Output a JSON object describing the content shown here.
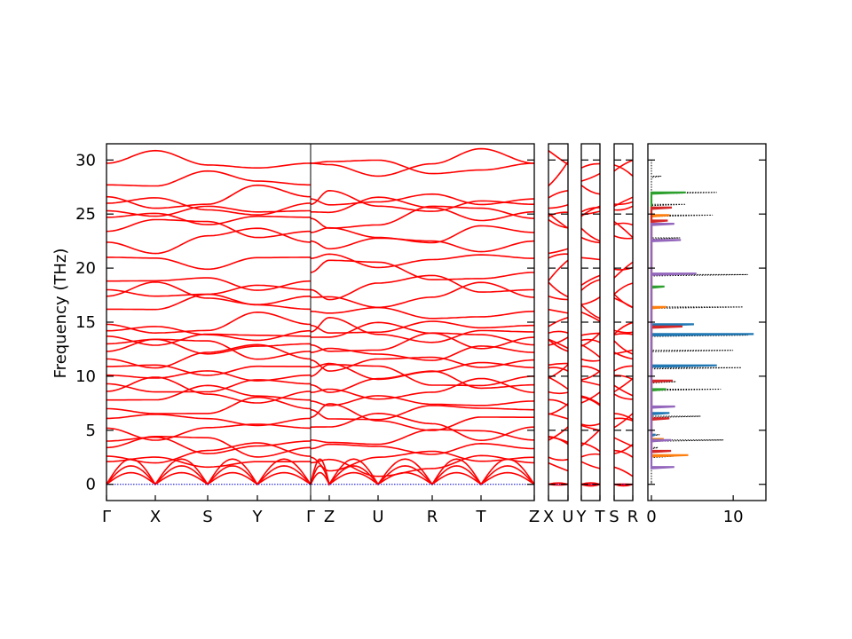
{
  "chart_data": {
    "type": "line",
    "ylabel": "Frequency (THz)",
    "ylim": [
      -1.5,
      31.5
    ],
    "yticks": [
      "0",
      "5",
      "10",
      "15",
      "20",
      "25",
      "30"
    ],
    "band_color": "#ff0000",
    "zero_line_color": "#0000cc",
    "panels": [
      {
        "segments": [
          {
            "labels": [
              "Γ",
              "X"
            ]
          },
          {
            "labels": [
              "X",
              "S"
            ]
          },
          {
            "labels": [
              "S",
              "Y"
            ]
          },
          {
            "labels": [
              "Y",
              "Γ"
            ]
          }
        ]
      },
      {
        "segments": [
          {
            "labels": [
              "Z",
              "U"
            ]
          },
          {
            "labels": [
              "U",
              "R"
            ]
          },
          {
            "labels": [
              "R",
              "T"
            ]
          },
          {
            "labels": [
              "T",
              "Z"
            ]
          }
        ]
      },
      {
        "segments": [
          {
            "labels": [
              "X",
              "U"
            ]
          }
        ]
      },
      {
        "segments": [
          {
            "labels": [
              "Y",
              "T"
            ]
          }
        ]
      },
      {
        "segments": [
          {
            "labels": [
              "S",
              "R"
            ]
          }
        ]
      }
    ],
    "band_frequencies": {
      "Gamma": [
        0,
        0,
        0,
        2.1,
        2.6,
        3.4,
        4.0,
        5.2,
        6.1,
        7.0,
        7.8,
        8.6,
        9.3,
        10.1,
        10.9,
        11.6,
        12.3,
        13.0,
        13.7,
        14.2,
        14.8,
        16.2,
        17.4,
        18.0,
        18.8,
        21.0,
        22.4,
        23.4,
        24.7,
        25.3,
        26.0,
        26.6,
        27.7,
        29.7
      ],
      "Z": [
        0,
        0,
        0,
        2.0,
        2.5,
        3.3,
        4.1,
        5.3,
        6.2,
        6.9,
        7.7,
        8.5,
        9.2,
        10.0,
        10.8,
        11.5,
        12.2,
        12.9,
        13.6,
        14.1,
        14.7,
        16.0,
        17.3,
        18.0,
        19.6,
        20.9,
        22.5,
        23.3,
        24.6,
        25.2,
        25.9,
        26.4,
        29.7,
        29.7
      ]
    },
    "dos": {
      "xticks": [
        "0",
        "10"
      ],
      "xlim": [
        0,
        14
      ],
      "series": [
        {
          "color": "#000000",
          "style": "dotted",
          "points": [
            [
              0,
              0.2
            ],
            [
              2.7,
              2.6
            ],
            [
              0.8,
              3.4
            ],
            [
              8.8,
              4.1
            ],
            [
              1.0,
              4.6
            ],
            [
              6.0,
              6.3
            ],
            [
              8.5,
              8.8
            ],
            [
              3.0,
              9.5
            ],
            [
              11.0,
              10.8
            ],
            [
              10.0,
              12.4
            ],
            [
              11.8,
              13.8
            ],
            [
              2.0,
              14.8
            ],
            [
              11.2,
              16.4
            ],
            [
              11.8,
              19.4
            ],
            [
              3.5,
              22.8
            ],
            [
              7.5,
              24.9
            ],
            [
              4.2,
              25.9
            ],
            [
              8.0,
              27.0
            ],
            [
              1.2,
              28.5
            ],
            [
              0,
              30.0
            ]
          ]
        },
        {
          "color": "#1f77b4",
          "style": "solid",
          "points": [
            [
              0.5,
              4.6
            ],
            [
              2.2,
              6.6
            ],
            [
              8.0,
              11.0
            ],
            [
              12.5,
              13.9
            ],
            [
              5.2,
              14.8
            ]
          ]
        },
        {
          "color": "#ff7f0e",
          "style": "solid",
          "points": [
            [
              4.5,
              2.7
            ],
            [
              1.5,
              4.2
            ],
            [
              1.8,
              16.4
            ],
            [
              2.2,
              24.9
            ]
          ]
        },
        {
          "color": "#2ca02c",
          "style": "solid",
          "points": [
            [
              1.2,
              4.1
            ],
            [
              1.8,
              8.8
            ],
            [
              1.6,
              18.3
            ],
            [
              4.2,
              27.0
            ]
          ]
        },
        {
          "color": "#d62728",
          "style": "solid",
          "points": [
            [
              2.4,
              3.1
            ],
            [
              2.2,
              6.1
            ],
            [
              2.6,
              9.6
            ],
            [
              3.8,
              14.6
            ],
            [
              2.0,
              24.4
            ],
            [
              2.5,
              25.6
            ]
          ]
        },
        {
          "color": "#9467bd",
          "style": "solid",
          "points": [
            [
              2.8,
              1.6
            ],
            [
              2.4,
              4.1
            ],
            [
              2.9,
              7.2
            ],
            [
              5.5,
              19.5
            ],
            [
              3.6,
              22.6
            ],
            [
              2.8,
              24.1
            ]
          ]
        }
      ]
    }
  }
}
